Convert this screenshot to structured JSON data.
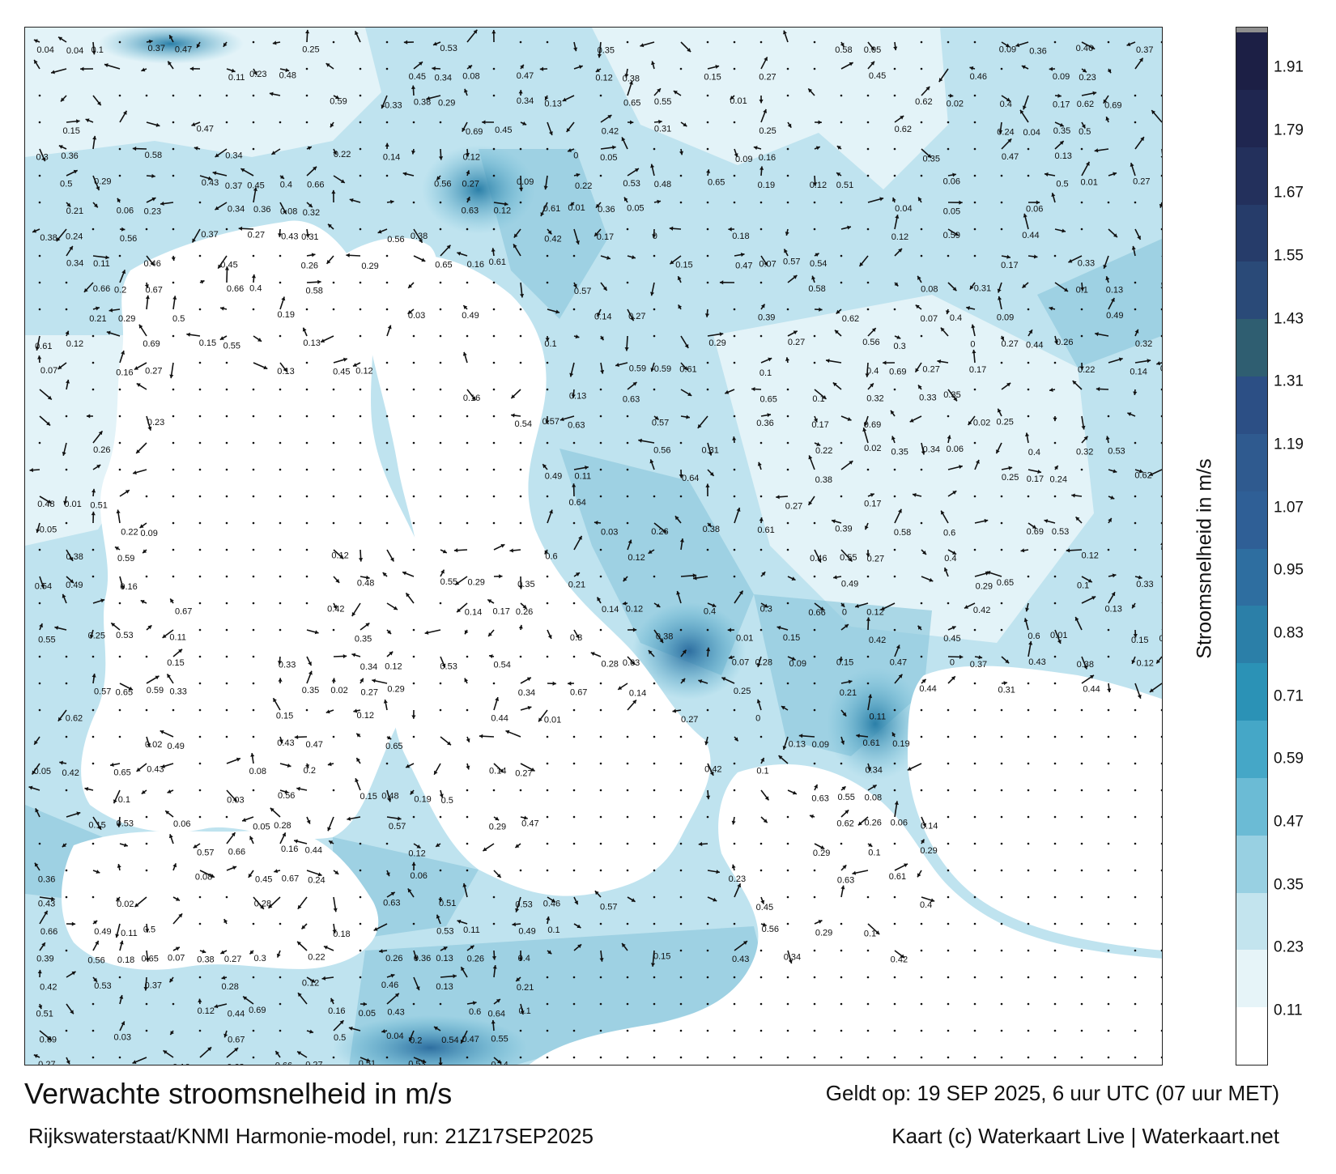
{
  "map": {
    "title": "Verwachte stroomsnelheid in m/s",
    "model": "Rijkswaterstaat/KNMI Harmonie-model, run: 21Z17SEP2025",
    "valid": "Geldt op: 19 SEP 2025, 6 uur UTC (07 uur MET)",
    "credit": "Kaart (c) Waterkaart Live | Waterkaart.net",
    "land_color": "#ffffff",
    "sample_labels": [
      "0.09",
      "0.13",
      "0.08",
      "0.07",
      "0.05",
      "0.04",
      "0.25",
      "0.27",
      "0.02",
      "0.12",
      "0.11",
      "0.2",
      "0.1",
      "0.06",
      "0.03",
      "0.29",
      "0.47",
      "0.45",
      "0.53",
      "0.51",
      "0.62",
      "0.46",
      "0.59",
      "0.3",
      "0.24",
      "0.28",
      "0.27",
      "0.29",
      "0.39",
      "0.37",
      "0.35",
      "0.34",
      "0.22",
      "0.26",
      "0.21",
      "0.19",
      "0.16",
      "0.18",
      "0.14",
      "0.15",
      "0.17",
      "0.12",
      "0.44",
      "0.38",
      "0.36",
      "0.32",
      "0.31",
      "0.33",
      "0.4",
      "0.42",
      "0.43",
      "0.48",
      "0.49",
      "0.5",
      "0.54",
      "0.55",
      "0.56",
      "0.57",
      "0.58",
      "0.6",
      "0.61",
      "0.63",
      "0.64",
      "0.65",
      "0.66",
      "0.67",
      "0.69",
      "0.23",
      "0.01",
      "0"
    ]
  },
  "colorbar": {
    "label": "Stroomsnelheid in m/s",
    "ticks": [
      "1.91",
      "1.79",
      "1.67",
      "1.55",
      "1.43",
      "1.31",
      "1.19",
      "1.07",
      "0.95",
      "0.83",
      "0.71",
      "0.59",
      "0.47",
      "0.35",
      "0.23",
      "0.11"
    ],
    "colors": [
      "#ffffff",
      "#e6f4f8",
      "#c3e4ee",
      "#98d0e2",
      "#6bbbd5",
      "#45a7c7",
      "#2b92b6",
      "#2b7fa8",
      "#2e6ea0",
      "#2f5f96",
      "#2f5a8f",
      "#2c4f85",
      "#2f5e71",
      "#2a4a78",
      "#263c6a",
      "#23305c",
      "#1f2650",
      "#1c1f45",
      "#8f8f8f"
    ]
  }
}
